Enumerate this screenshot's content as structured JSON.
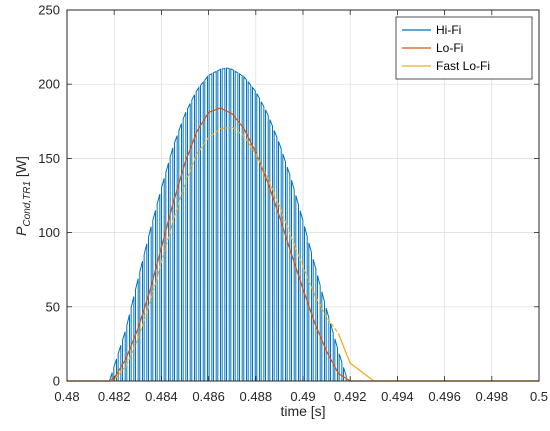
{
  "chart_data": {
    "type": "line",
    "title": "",
    "xlabel": "time [s]",
    "ylabel_main": "P",
    "ylabel_sub": "Cond,TR1",
    "ylabel_unit": "[W]",
    "xlim": [
      0.48,
      0.5
    ],
    "ylim": [
      0,
      250
    ],
    "xticks": [
      0.48,
      0.482,
      0.484,
      0.486,
      0.488,
      0.49,
      0.492,
      0.494,
      0.496,
      0.498,
      0.5
    ],
    "xtick_labels": [
      "0.48",
      "0.482",
      "0.484",
      "0.486",
      "0.488",
      "0.49",
      "0.492",
      "0.494",
      "0.496",
      "0.498",
      "0.5"
    ],
    "yticks": [
      0,
      50,
      100,
      150,
      200,
      250
    ],
    "ytick_labels": [
      "0",
      "50",
      "100",
      "150",
      "200",
      "250"
    ],
    "grid": true,
    "legend_position": "top-right",
    "series": [
      {
        "name": "Hi-Fi",
        "color": "#0072BD",
        "style": "pwm-switching",
        "envelope_x": [
          0.4818,
          0.4825,
          0.483,
          0.4835,
          0.484,
          0.4845,
          0.485,
          0.4855,
          0.486,
          0.4865,
          0.4868,
          0.487,
          0.4875,
          0.488,
          0.4885,
          0.489,
          0.4895,
          0.49,
          0.4905,
          0.491,
          0.4915,
          0.4919
        ],
        "envelope_y": [
          0,
          35,
          68,
          100,
          130,
          158,
          180,
          196,
          206,
          210,
          211,
          210,
          205,
          195,
          180,
          160,
          136,
          108,
          78,
          48,
          20,
          0
        ],
        "pulse_count": 55
      },
      {
        "name": "Lo-Fi",
        "color": "#D95319",
        "x": [
          0.48,
          0.4818,
          0.482,
          0.4825,
          0.483,
          0.4835,
          0.484,
          0.4845,
          0.485,
          0.4855,
          0.486,
          0.4865,
          0.487,
          0.4875,
          0.488,
          0.4885,
          0.489,
          0.4895,
          0.49,
          0.4905,
          0.491,
          0.4915,
          0.492,
          0.5
        ],
        "y": [
          0,
          0,
          2,
          15,
          35,
          60,
          90,
          120,
          147,
          168,
          181,
          184,
          180,
          170,
          154,
          134,
          111,
          86,
          62,
          39,
          20,
          5,
          0,
          0
        ]
      },
      {
        "name": "Fast Lo-Fi",
        "color": "#EDB120",
        "style": "dashed-then-solid",
        "x": [
          0.48,
          0.4818,
          0.482,
          0.4825,
          0.483,
          0.4835,
          0.484,
          0.4845,
          0.485,
          0.4855,
          0.486,
          0.4865,
          0.487,
          0.4875,
          0.488,
          0.4885,
          0.489,
          0.4895,
          0.49,
          0.4905,
          0.491,
          0.4915,
          0.492,
          0.493,
          0.5
        ],
        "y": [
          0,
          0,
          1,
          10,
          28,
          52,
          80,
          108,
          133,
          153,
          164,
          170,
          171,
          165,
          153,
          137,
          118,
          97,
          77,
          58,
          43,
          32,
          12,
          0,
          0
        ]
      }
    ]
  }
}
